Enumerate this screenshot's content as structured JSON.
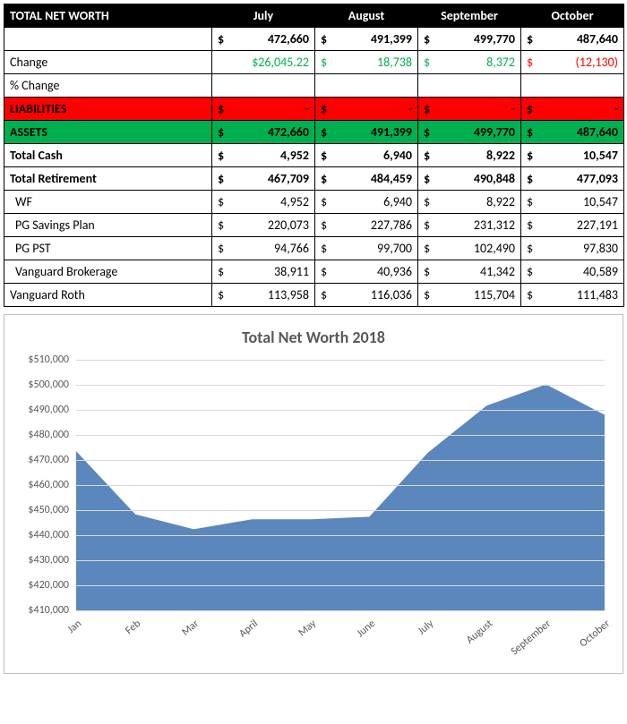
{
  "table": {
    "header_title": "TOTAL NET WORTH",
    "months": [
      "July",
      "August",
      "September",
      "October"
    ],
    "rows": [
      {
        "key": "networth",
        "label": "",
        "style": "bold",
        "values": [
          "472,660",
          "491,399",
          "499,770",
          "487,640"
        ]
      },
      {
        "key": "change",
        "label": "Change",
        "colors": [
          "green",
          "green",
          "green",
          "red"
        ],
        "values": [
          "$26,045.22",
          "18,738",
          "8,372",
          "(12,130)"
        ],
        "showSym": [
          false,
          true,
          true,
          true
        ]
      },
      {
        "key": "pctchange",
        "label": "% Change",
        "values": [
          "",
          "",
          "",
          ""
        ],
        "noSym": true
      },
      {
        "key": "liabilities",
        "label": "LIABILITIES",
        "rowClass": "liab-row",
        "values": [
          "-",
          "-",
          "-",
          "-"
        ]
      },
      {
        "key": "assets",
        "label": "ASSETS",
        "rowClass": "asset-row",
        "values": [
          "472,660",
          "491,399",
          "499,770",
          "487,640"
        ]
      },
      {
        "key": "totalcash",
        "label": "Total Cash",
        "style": "bold",
        "values": [
          "4,952",
          "6,940",
          "8,922",
          "10,547"
        ]
      },
      {
        "key": "totalretire",
        "label": "Total Retirement",
        "style": "bold",
        "values": [
          "467,709",
          "484,459",
          "490,848",
          "477,093"
        ]
      },
      {
        "key": "wf",
        "label": "WF",
        "indent": true,
        "values": [
          "4,952",
          "6,940",
          "8,922",
          "10,547"
        ]
      },
      {
        "key": "pgsavings",
        "label": "PG Savings Plan",
        "indent": true,
        "values": [
          "220,073",
          "227,786",
          "231,312",
          "227,191"
        ]
      },
      {
        "key": "pgpst",
        "label": "PG PST",
        "indent": true,
        "values": [
          "94,766",
          "99,700",
          "102,490",
          "97,830"
        ]
      },
      {
        "key": "vbroker",
        "label": "Vanguard Brokerage",
        "indent": true,
        "values": [
          "38,911",
          "40,936",
          "41,342",
          "40,589"
        ]
      },
      {
        "key": "vroth",
        "label": "Vanguard Roth",
        "values": [
          "113,958",
          "116,036",
          "115,704",
          "111,483"
        ]
      }
    ]
  },
  "chart": {
    "type": "area",
    "title": "Total Net Worth 2018",
    "fill_color": "#5b87bc",
    "stroke_color": "#5b87bc",
    "background_color": "#ffffff",
    "grid_color": "#d9d9d9",
    "text_color": "#595959",
    "title_fontsize": 18,
    "label_fontsize": 12,
    "categories": [
      "Jan",
      "Feb",
      "Mar",
      "April",
      "May",
      "June",
      "July",
      "August",
      "September",
      "October"
    ],
    "values": [
      473000,
      448000,
      442000,
      446000,
      446000,
      447000,
      472660,
      491399,
      499770,
      487640
    ],
    "y_min": 410000,
    "y_max": 510000,
    "y_tick_step": 10000,
    "y_tick_format": "$#,##0"
  }
}
